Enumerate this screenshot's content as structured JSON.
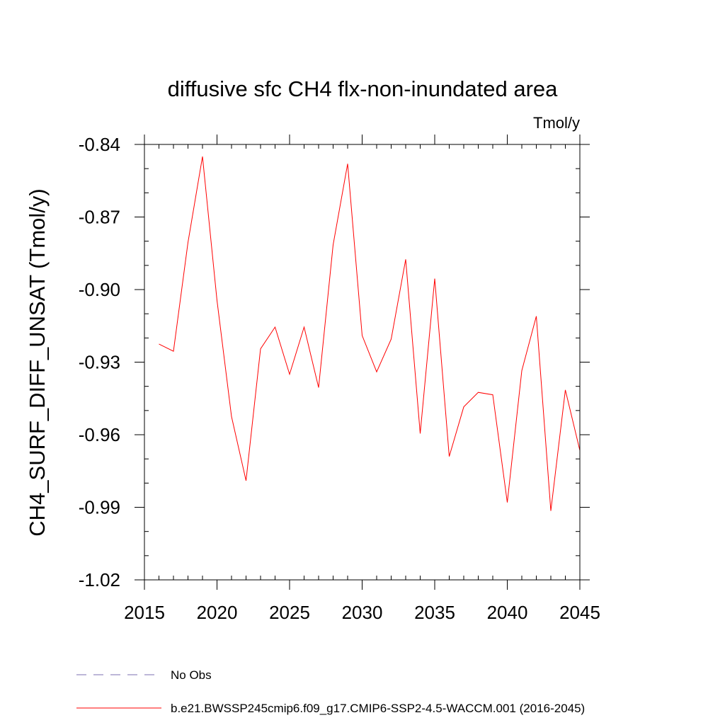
{
  "chart_data": {
    "type": "line",
    "title": "diffusive sfc CH4 flx-non-inundated area",
    "units_label": "Tmol/y",
    "ylabel": "CH4_SURF_DIFF_UNSAT  (Tmol/y)",
    "xlabel": "",
    "xlim": [
      2015,
      2045
    ],
    "ylim": [
      -1.02,
      -0.84
    ],
    "x_ticks": [
      2015,
      2020,
      2025,
      2030,
      2035,
      2040,
      2045
    ],
    "x_tick_labels": [
      "2015",
      "2020",
      "2025",
      "2030",
      "2035",
      "2040",
      "2045"
    ],
    "y_ticks": [
      -0.84,
      -0.87,
      -0.9,
      -0.93,
      -0.96,
      -0.99,
      -1.02
    ],
    "y_tick_labels": [
      "-0.84",
      "-0.87",
      "-0.90",
      "-0.93",
      "-0.96",
      "-0.99",
      "-1.02"
    ],
    "x_minor_step": 1,
    "y_minor_step": 0.01,
    "grid": false,
    "series": [
      {
        "name": "b.e21.BWSSP245cmip6.f09_g17.CMIP6-SSP2-4.5-WACCM.001 (2016-2045)",
        "color": "#ff0000",
        "style": "solid",
        "x": [
          2016,
          2017,
          2018,
          2019,
          2020,
          2021,
          2022,
          2023,
          2024,
          2025,
          2026,
          2027,
          2028,
          2029,
          2030,
          2031,
          2032,
          2033,
          2034,
          2035,
          2036,
          2037,
          2038,
          2039,
          2040,
          2041,
          2042,
          2043,
          2044,
          2045
        ],
        "values": [
          -0.9225,
          -0.9255,
          -0.8805,
          -0.845,
          -0.9045,
          -0.9525,
          -0.979,
          -0.9245,
          -0.9155,
          -0.935,
          -0.9155,
          -0.9405,
          -0.8815,
          -0.848,
          -0.919,
          -0.934,
          -0.9205,
          -0.8875,
          -0.9595,
          -0.8955,
          -0.969,
          -0.9485,
          -0.9425,
          -0.9435,
          -0.988,
          -0.9335,
          -0.911,
          -0.9915,
          -0.9415,
          -0.9665
        ]
      }
    ],
    "legend": {
      "placement": "bottom-left",
      "entries": [
        {
          "label": "No Obs",
          "color": "#7b6fb0",
          "style": "dashed"
        },
        {
          "label": "b.e21.BWSSP245cmip6.f09_g17.CMIP6-SSP2-4.5-WACCM.001 (2016-2045)",
          "color": "#ff0000",
          "style": "solid"
        }
      ]
    }
  }
}
